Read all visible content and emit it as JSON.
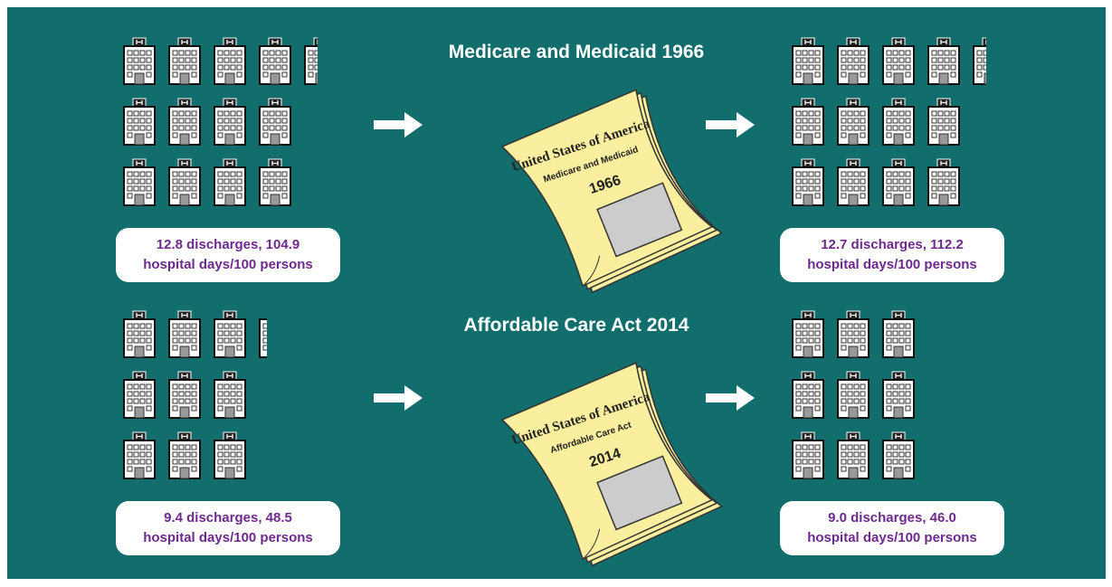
{
  "panels": [
    {
      "title": "Medicare and Medicaid 1966",
      "document": {
        "heading": "United States of America",
        "name": "Medicare and Medicaid",
        "year": "1966"
      },
      "before": {
        "lines": [
          "12.8 discharges, 104.9",
          "hospital days/100 persons"
        ]
      },
      "after": {
        "lines": [
          "12.7 discharges, 112.2",
          "hospital days/100 persons"
        ]
      }
    },
    {
      "title": "Affordable Care Act 2014",
      "document": {
        "heading": "United States of America",
        "name": "Affordable Care Act",
        "year": "2014"
      },
      "before": {
        "lines": [
          "9.4 discharges, 48.5",
          "hospital days/100 persons"
        ]
      },
      "after": {
        "lines": [
          "9.0 discharges, 46.0",
          "hospital days/100 persons"
        ]
      }
    }
  ]
}
